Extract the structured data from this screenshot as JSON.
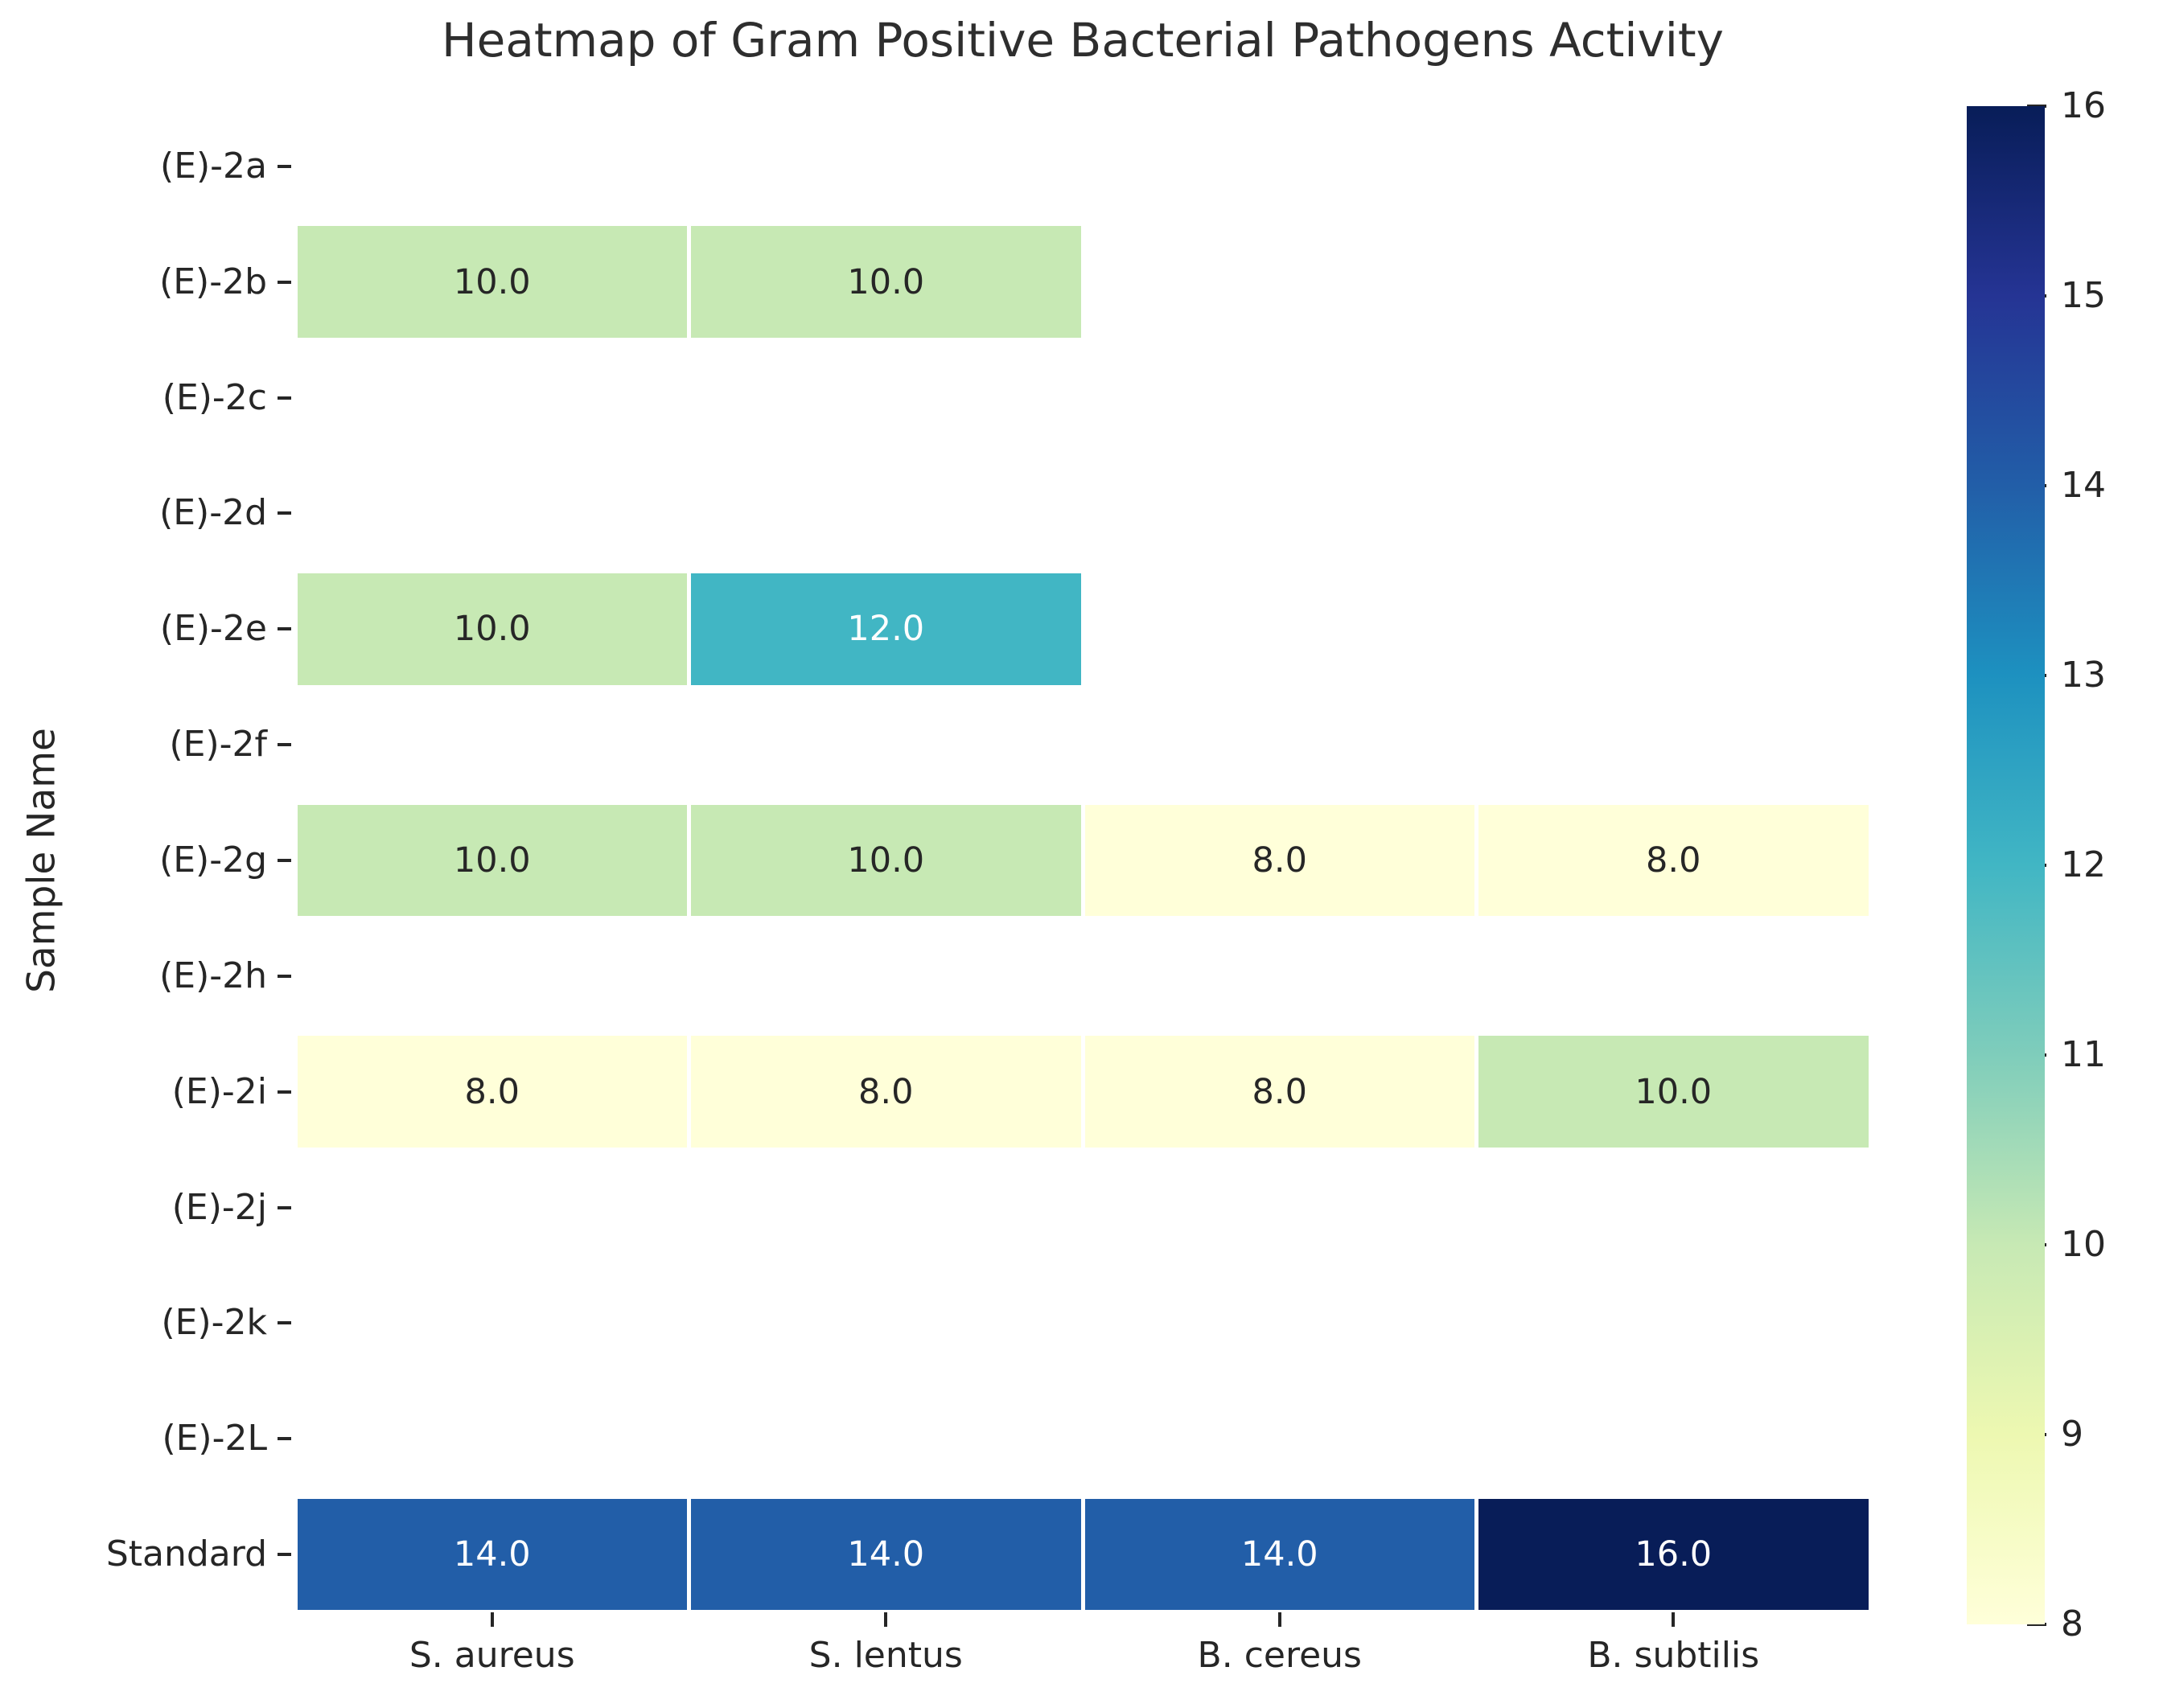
{
  "chart_data": {
    "type": "heatmap",
    "title": "Heatmap of Gram Positive Bacterial Pathogens Activity",
    "xlabel": "",
    "ylabel": "Sample Name",
    "columns": [
      "S. aureus",
      "S. lentus",
      "B. cereus",
      "B. subtilis"
    ],
    "rows": [
      "(E)-2a",
      "(E)-2b",
      "(E)-2c",
      "(E)-2d",
      "(E)-2e",
      "(E)-2f",
      "(E)-2g",
      "(E)-2h",
      "(E)-2i",
      "(E)-2j",
      "(E)-2k",
      "(E)-2L",
      "Standard"
    ],
    "values": [
      [
        null,
        null,
        null,
        null
      ],
      [
        10.0,
        10.0,
        null,
        null
      ],
      [
        null,
        null,
        null,
        null
      ],
      [
        null,
        null,
        null,
        null
      ],
      [
        10.0,
        12.0,
        null,
        null
      ],
      [
        null,
        null,
        null,
        null
      ],
      [
        10.0,
        10.0,
        8.0,
        8.0
      ],
      [
        null,
        null,
        null,
        null
      ],
      [
        8.0,
        8.0,
        8.0,
        10.0
      ],
      [
        null,
        null,
        null,
        null
      ],
      [
        null,
        null,
        null,
        null
      ],
      [
        null,
        null,
        null,
        null
      ],
      [
        14.0,
        14.0,
        14.0,
        16.0
      ]
    ],
    "annotation_decimals": 1,
    "annotation_color_dark": "#262626",
    "annotation_color_light": "#ffffff",
    "cell_gap_color": "#ffffff",
    "legend_position": "right",
    "grid": false,
    "colorbar": {
      "min": 8,
      "max": 16,
      "ticks": [
        8,
        9,
        10,
        11,
        12,
        13,
        14,
        15,
        16
      ],
      "colormap": "YlGnBu",
      "stops": [
        "#ffffd9",
        "#edf8b1",
        "#c7e9b4",
        "#7fcdbb",
        "#41b6c4",
        "#1d91c0",
        "#225ea8",
        "#253494",
        "#081d58"
      ]
    }
  }
}
